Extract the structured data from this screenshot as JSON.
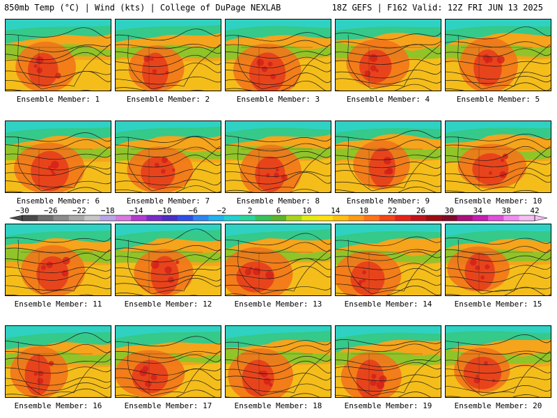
{
  "header": {
    "left": "850mb Temp (°C) | Wind (kts) | College of DuPage NEXLAB",
    "right": "18Z GEFS | F162 Valid: 12Z FRI JUN 13 2025"
  },
  "panels": [
    {
      "label": "Ensemble Member: 1"
    },
    {
      "label": "Ensemble Member: 2"
    },
    {
      "label": "Ensemble Member: 3"
    },
    {
      "label": "Ensemble Member: 4"
    },
    {
      "label": "Ensemble Member: 5"
    },
    {
      "label": "Ensemble Member: 6"
    },
    {
      "label": "Ensemble Member: 7"
    },
    {
      "label": "Ensemble Member: 8"
    },
    {
      "label": "Ensemble Member: 9"
    },
    {
      "label": "Ensemble Member: 10"
    },
    {
      "label": "Ensemble Member: 11"
    },
    {
      "label": "Ensemble Member: 12"
    },
    {
      "label": "Ensemble Member: 13"
    },
    {
      "label": "Ensemble Member: 14"
    },
    {
      "label": "Ensemble Member: 15"
    },
    {
      "label": "Ensemble Member: 16"
    },
    {
      "label": "Ensemble Member: 17"
    },
    {
      "label": "Ensemble Member: 18"
    },
    {
      "label": "Ensemble Member: 19"
    },
    {
      "label": "Ensemble Member: 20"
    }
  ],
  "colorbar": {
    "tick_labels": [
      "−30",
      "−26",
      "−22",
      "−18",
      "−14",
      "−10",
      "−6",
      "−2",
      "2",
      "6",
      "10",
      "14",
      "18",
      "22",
      "26",
      "30",
      "34",
      "38",
      "42"
    ],
    "colors": [
      "#4a4a4a",
      "#6e6e6e",
      "#8c8c8c",
      "#a9a9a9",
      "#c7c7c7",
      "#b8a6e6",
      "#d77be0",
      "#b43bd1",
      "#7a2cc7",
      "#4c2fc4",
      "#2f4fe6",
      "#2f86f0",
      "#21b4ee",
      "#22d2cf",
      "#2bd69a",
      "#36c35c",
      "#5db52c",
      "#a9d41d",
      "#e4ea12",
      "#ffe011",
      "#ffc012",
      "#ff9b15",
      "#ff7418",
      "#f5471a",
      "#e5241a",
      "#c4141a",
      "#9d0e12",
      "#820a2a",
      "#a8127a",
      "#c61eb0",
      "#e050d8",
      "#f28cf0",
      "#f4bff3"
    ]
  },
  "map_colors": {
    "ocean_north": "#2fd1c2",
    "arctic": "#35c98a",
    "cool_green": "#7fca2c",
    "warm_yellow": "#f3d21a",
    "orange": "#f5a41c",
    "hot_orange": "#f2761a",
    "hot_red": "#e63a1c",
    "contour": "#1a1a1a"
  }
}
